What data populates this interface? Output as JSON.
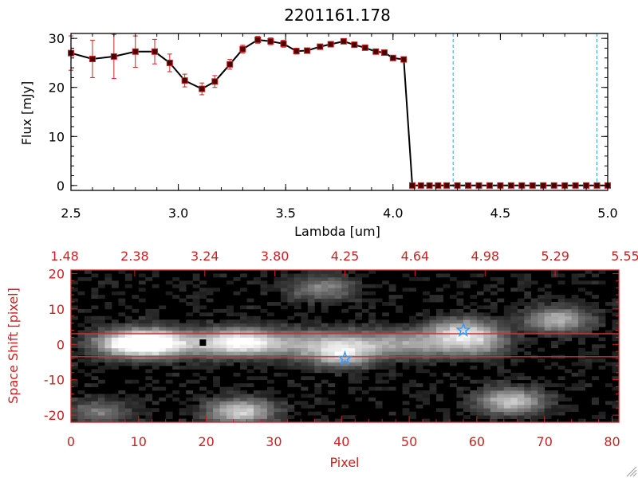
{
  "colors": {
    "text": "#000000",
    "accent_red": "#cc2222",
    "marker_fill": "#4a0000",
    "marker_edge": "#cc2222",
    "vline_blue": "#3399ee",
    "star_blue": "#3399ff",
    "hline_red": "#cc3333"
  },
  "chart_data": [
    {
      "type": "line",
      "title": "2201161.178",
      "xlabel": "Lambda [um]",
      "ylabel": "Flux [mJy]",
      "xlim": [
        2.5,
        5.0
      ],
      "ylim": [
        -1,
        31
      ],
      "xticks": [
        "2.5",
        "3.0",
        "3.5",
        "4.0",
        "4.5",
        "5.0"
      ],
      "yticks": [
        "0",
        "10",
        "20",
        "30"
      ],
      "grid": false,
      "series": [
        {
          "marker": "square",
          "x": [
            2.5,
            2.6,
            2.7,
            2.8,
            2.89,
            2.96,
            3.03,
            3.11,
            3.17,
            3.24,
            3.3,
            3.37,
            3.43,
            3.49,
            3.55,
            3.6,
            3.66,
            3.71,
            3.77,
            3.82,
            3.87,
            3.92,
            3.96,
            4.0,
            4.05,
            4.09,
            4.13,
            4.17,
            4.21,
            4.25,
            4.3,
            4.35,
            4.4,
            4.45,
            4.5,
            4.55,
            4.6,
            4.65,
            4.7,
            4.75,
            4.8,
            4.85,
            4.9,
            4.95,
            5.0
          ],
          "y": [
            27.0,
            25.8,
            26.3,
            27.3,
            27.3,
            25.0,
            21.4,
            19.7,
            21.2,
            24.7,
            27.8,
            29.7,
            29.4,
            28.9,
            27.4,
            27.5,
            28.3,
            28.8,
            29.4,
            28.7,
            28.1,
            27.3,
            27.1,
            26.0,
            25.7,
            0,
            0,
            0,
            0,
            0,
            0,
            0,
            0,
            0,
            0,
            0,
            0,
            0,
            0,
            0,
            0,
            0,
            0,
            0,
            0
          ],
          "yerr": [
            3.5,
            3.8,
            4.5,
            3.2,
            2.5,
            1.8,
            1.3,
            1.2,
            1.2,
            1.0,
            0.8,
            0.7,
            0.7,
            0.7,
            0.6,
            0.5,
            0.5,
            0.5,
            0.5,
            0.5,
            0.5,
            0.5,
            0.5,
            0.5,
            0.5,
            0,
            0,
            0,
            0,
            0,
            0,
            0,
            0,
            0,
            0,
            0,
            0,
            0,
            0,
            0,
            0,
            0,
            0,
            0,
            0
          ]
        }
      ],
      "vlines": [
        4.28,
        4.95
      ]
    },
    {
      "type": "heatmap",
      "xlabel": "Pixel",
      "ylabel": "Space Shift [pixel]",
      "xlim": [
        0,
        81
      ],
      "ylim": [
        -22,
        21
      ],
      "xticks": [
        "0",
        "10",
        "20",
        "30",
        "40",
        "50",
        "60",
        "70",
        "80"
      ],
      "yticks": [
        "-20",
        "-10",
        "0",
        "10",
        "20"
      ],
      "top_xticks": [
        "1.48",
        "2.38",
        "3.24",
        "3.80",
        "4.25",
        "4.64",
        "4.98",
        "5.29",
        "5.55"
      ],
      "extraction_lines_y": [
        3,
        -3.5
      ],
      "sources": [
        {
          "name": "trace",
          "x": [
            7,
            60
          ],
          "y": 0.3,
          "level": 0.55
        },
        {
          "name": "blob-left",
          "x": 11,
          "y": 0.5,
          "level": 0.95
        },
        {
          "name": "blob-25",
          "x": 25,
          "y": 1.0,
          "level": 0.5
        },
        {
          "name": "blob-40",
          "x": 40,
          "y": -3.0,
          "level": 0.6
        },
        {
          "name": "blob-58",
          "x": 58,
          "y": 4.0,
          "level": 0.6
        },
        {
          "name": "blob-72",
          "x": 72,
          "y": 7.0,
          "level": 0.6
        },
        {
          "name": "blob-top-37",
          "x": 37,
          "y": 16.0,
          "level": 0.4
        },
        {
          "name": "blob-bottom-25",
          "x": 25,
          "y": -19.0,
          "level": 0.75
        },
        {
          "name": "blob-bottom-65",
          "x": 65,
          "y": -16.0,
          "level": 0.7
        },
        {
          "name": "blob-bottom-4",
          "x": 4,
          "y": -19.0,
          "level": 0.35
        }
      ],
      "markers": [
        {
          "symbol": "square",
          "color": "#000000",
          "x": 19.5,
          "y": 0.5
        },
        {
          "symbol": "star",
          "color": "#3399ff",
          "x": 40.5,
          "y": -4.0
        },
        {
          "symbol": "star",
          "color": "#3399ff",
          "x": 58,
          "y": 4.0
        }
      ]
    }
  ]
}
